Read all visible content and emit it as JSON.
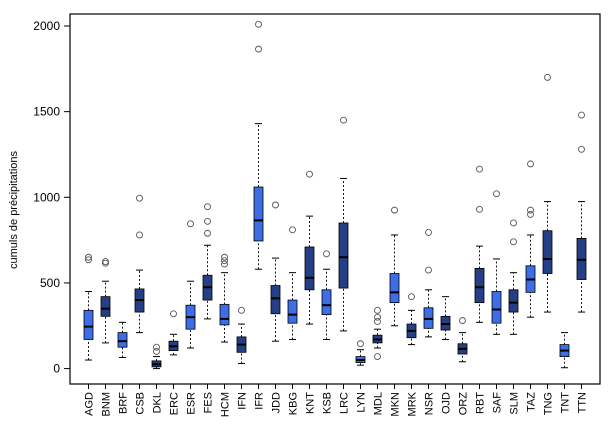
{
  "chart_data": {
    "type": "boxplot",
    "title": "",
    "xlabel": "",
    "ylabel": "cumuls de précipitations",
    "ylim": [
      -90,
      2070
    ],
    "yticks": [
      0,
      500,
      1000,
      1500,
      2000
    ],
    "grid": false,
    "colors": {
      "light": "#3d6ee6",
      "dark": "#243f85",
      "outline": "#000000",
      "outlier": "#555555"
    },
    "boxes": [
      {
        "station": "AGD",
        "shade": "light",
        "lower": 50,
        "q1": 170,
        "median": 245,
        "q3": 340,
        "upper": 450,
        "outliers": [
          635,
          650
        ]
      },
      {
        "station": "BNM",
        "shade": "dark",
        "lower": 150,
        "q1": 305,
        "median": 350,
        "q3": 420,
        "upper": 510,
        "outliers": [
          615,
          625
        ]
      },
      {
        "station": "BRF",
        "shade": "light",
        "lower": 65,
        "q1": 125,
        "median": 160,
        "q3": 210,
        "upper": 270,
        "outliers": []
      },
      {
        "station": "CSB",
        "shade": "dark",
        "lower": 210,
        "q1": 330,
        "median": 400,
        "q3": 465,
        "upper": 575,
        "outliers": [
          780,
          995
        ]
      },
      {
        "station": "DKL",
        "shade": "dark",
        "lower": 0,
        "q1": 10,
        "median": 25,
        "q3": 45,
        "upper": 70,
        "outliers": [
          100,
          125
        ]
      },
      {
        "station": "ERC",
        "shade": "dark",
        "lower": 80,
        "q1": 105,
        "median": 130,
        "q3": 160,
        "upper": 200,
        "outliers": [
          320
        ]
      },
      {
        "station": "ESR",
        "shade": "light",
        "lower": 120,
        "q1": 230,
        "median": 300,
        "q3": 370,
        "upper": 510,
        "outliers": [
          845
        ]
      },
      {
        "station": "FES",
        "shade": "dark",
        "lower": 290,
        "q1": 400,
        "median": 475,
        "q3": 545,
        "upper": 720,
        "outliers": [
          790,
          860,
          945
        ]
      },
      {
        "station": "HCM",
        "shade": "light",
        "lower": 155,
        "q1": 255,
        "median": 290,
        "q3": 375,
        "upper": 560,
        "outliers": [
          610,
          630,
          650
        ]
      },
      {
        "station": "IFN",
        "shade": "dark",
        "lower": 30,
        "q1": 95,
        "median": 140,
        "q3": 185,
        "upper": 260,
        "outliers": [
          340
        ]
      },
      {
        "station": "IFR",
        "shade": "light",
        "lower": 580,
        "q1": 745,
        "median": 865,
        "q3": 1060,
        "upper": 1430,
        "outliers": [
          1865,
          2010
        ]
      },
      {
        "station": "JDD",
        "shade": "dark",
        "lower": 160,
        "q1": 320,
        "median": 410,
        "q3": 485,
        "upper": 645,
        "outliers": [
          955
        ]
      },
      {
        "station": "KBG",
        "shade": "light",
        "lower": 170,
        "q1": 265,
        "median": 315,
        "q3": 400,
        "upper": 560,
        "outliers": [
          810
        ]
      },
      {
        "station": "KNT",
        "shade": "dark",
        "lower": 260,
        "q1": 460,
        "median": 530,
        "q3": 710,
        "upper": 890,
        "outliers": [
          1135
        ]
      },
      {
        "station": "KSB",
        "shade": "light",
        "lower": 170,
        "q1": 315,
        "median": 370,
        "q3": 460,
        "upper": 580,
        "outliers": [
          670
        ]
      },
      {
        "station": "LRC",
        "shade": "dark",
        "lower": 220,
        "q1": 470,
        "median": 650,
        "q3": 850,
        "upper": 1110,
        "outliers": [
          1450
        ]
      },
      {
        "station": "LYN",
        "shade": "light",
        "lower": 20,
        "q1": 35,
        "median": 50,
        "q3": 70,
        "upper": 110,
        "outliers": [
          145
        ]
      },
      {
        "station": "MDL",
        "shade": "dark",
        "lower": 120,
        "q1": 150,
        "median": 170,
        "q3": 195,
        "upper": 230,
        "outliers": [
          70,
          275,
          300,
          340
        ]
      },
      {
        "station": "MKN",
        "shade": "light",
        "lower": 250,
        "q1": 385,
        "median": 445,
        "q3": 555,
        "upper": 780,
        "outliers": [
          925
        ]
      },
      {
        "station": "MRK",
        "shade": "dark",
        "lower": 140,
        "q1": 180,
        "median": 220,
        "q3": 260,
        "upper": 340,
        "outliers": [
          420
        ]
      },
      {
        "station": "NSR",
        "shade": "light",
        "lower": 185,
        "q1": 235,
        "median": 290,
        "q3": 355,
        "upper": 460,
        "outliers": [
          575,
          795
        ]
      },
      {
        "station": "OJD",
        "shade": "dark",
        "lower": 170,
        "q1": 225,
        "median": 260,
        "q3": 305,
        "upper": 420,
        "outliers": []
      },
      {
        "station": "ORZ",
        "shade": "dark",
        "lower": 40,
        "q1": 85,
        "median": 115,
        "q3": 145,
        "upper": 210,
        "outliers": [
          280
        ]
      },
      {
        "station": "RBT",
        "shade": "dark",
        "lower": 270,
        "q1": 385,
        "median": 475,
        "q3": 585,
        "upper": 715,
        "outliers": [
          930,
          1165
        ]
      },
      {
        "station": "SAF",
        "shade": "light",
        "lower": 200,
        "q1": 265,
        "median": 345,
        "q3": 450,
        "upper": 640,
        "outliers": [
          1020
        ]
      },
      {
        "station": "SLM",
        "shade": "dark",
        "lower": 200,
        "q1": 330,
        "median": 385,
        "q3": 460,
        "upper": 560,
        "outliers": [
          740,
          850
        ]
      },
      {
        "station": "TAZ",
        "shade": "light",
        "lower": 300,
        "q1": 445,
        "median": 520,
        "q3": 600,
        "upper": 780,
        "outliers": [
          900,
          925,
          1195
        ]
      },
      {
        "station": "TNG",
        "shade": "dark",
        "lower": 330,
        "q1": 555,
        "median": 640,
        "q3": 805,
        "upper": 975,
        "outliers": [
          1700
        ]
      },
      {
        "station": "TNT",
        "shade": "light",
        "lower": 5,
        "q1": 70,
        "median": 105,
        "q3": 140,
        "upper": 210,
        "outliers": []
      },
      {
        "station": "TTN",
        "shade": "dark",
        "lower": 330,
        "q1": 520,
        "median": 635,
        "q3": 760,
        "upper": 975,
        "outliers": [
          1280,
          1480
        ]
      }
    ]
  }
}
